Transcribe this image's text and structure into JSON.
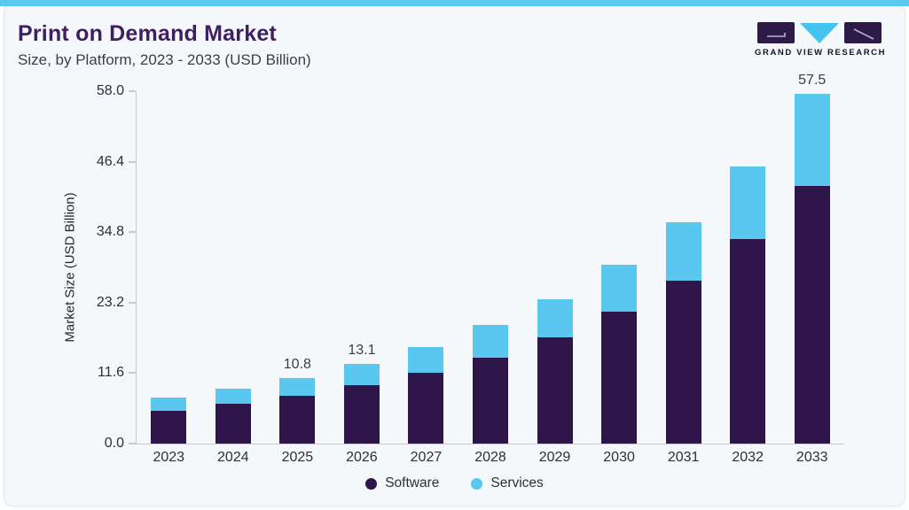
{
  "page": {
    "colors": {
      "accent": "#5bc8ef",
      "title": "#3d1f62",
      "card_bg": "#f5f8fb",
      "software_purple": "#2e164a",
      "services_blue": "#59c7f0",
      "logo_purple": "#2e1a47",
      "logo_blue": "#45c3f0",
      "axis_line": "#c5cbd4"
    }
  },
  "header": {
    "title": "Print on Demand Market",
    "subtitle": "Size, by Platform, 2023 - 2033 (USD Billion)",
    "brand_name": "GRAND VIEW RESEARCH",
    "logo_icon": "gvr-logo"
  },
  "chart_data": {
    "type": "bar",
    "stacked": true,
    "title": "Print on Demand Market",
    "subtitle": "Size, by Platform, 2023 - 2033 (USD Billion)",
    "categories": [
      "2023",
      "2024",
      "2025",
      "2026",
      "2027",
      "2028",
      "2029",
      "2030",
      "2031",
      "2032",
      "2033"
    ],
    "series": [
      {
        "name": "Software",
        "color": "#2e164a",
        "values": [
          5.4,
          6.6,
          7.8,
          9.6,
          11.6,
          14.1,
          17.5,
          21.7,
          26.8,
          33.6,
          42.4
        ]
      },
      {
        "name": "Services",
        "color": "#59c7f0",
        "values": [
          2.2,
          2.5,
          3.0,
          3.5,
          4.3,
          5.4,
          6.3,
          7.8,
          9.7,
          12.0,
          15.1
        ]
      }
    ],
    "totals": [
      7.6,
      9.1,
      10.8,
      13.1,
      15.9,
      19.5,
      23.8,
      29.5,
      36.5,
      45.6,
      57.5
    ],
    "bar_labels": {
      "2025": "10.8",
      "2026": "13.1",
      "2033": "57.5"
    },
    "xlabel": "",
    "ylabel": "Market Size (USD Billion)",
    "yticks": [
      "0.0",
      "11.6",
      "23.2",
      "34.8",
      "46.4",
      "58.0"
    ],
    "ylim": [
      0,
      58
    ],
    "grid": false,
    "legend_position": "bottom"
  }
}
